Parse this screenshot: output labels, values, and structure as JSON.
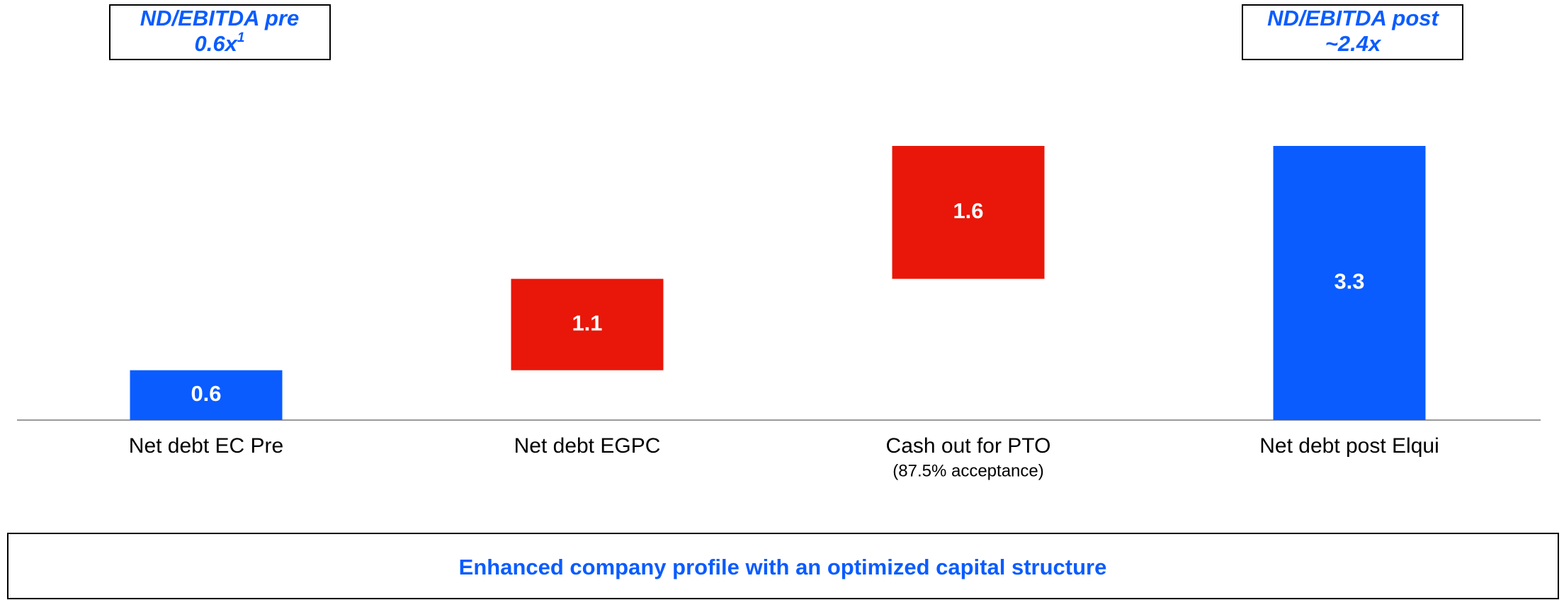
{
  "chart_data": {
    "type": "waterfall",
    "categories": [
      "Net debt EC Pre",
      "Net debt EGPC",
      "Cash out for PTO",
      "Net debt post Elqui"
    ],
    "category_notes": [
      null,
      null,
      "(87.5% acceptance)",
      null
    ],
    "values": [
      0.6,
      1.1,
      1.6,
      3.3
    ],
    "measure": [
      "absolute",
      "relative",
      "relative",
      "total"
    ],
    "colors": [
      "#0a5cff",
      "#e8170a",
      "#e8170a",
      "#0a5cff"
    ],
    "annotations": [
      {
        "text": "ND/EBITDA pre",
        "value_text": "0.6x",
        "footnote": "1"
      },
      {
        "text": "ND/EBITDA post",
        "value_text": "~2.4x"
      }
    ],
    "footer": "Enhanced company profile with an optimized capital structure"
  }
}
